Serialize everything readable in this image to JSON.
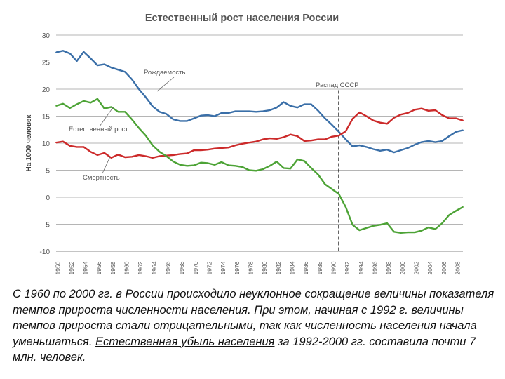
{
  "chart_data": {
    "type": "line",
    "title": "Естественный рост населения России",
    "ylabel": "На 1000 человек",
    "xlabel": "",
    "ylim": [
      -10,
      30
    ],
    "yticks": [
      30,
      25,
      20,
      15,
      10,
      5,
      0,
      -5,
      -10
    ],
    "xlim": [
      1950,
      2009
    ],
    "xticks": [
      "1950",
      "1952",
      "1954",
      "1956",
      "1958",
      "1960",
      "1962",
      "1964",
      "1966",
      "1968",
      "1970",
      "1972",
      "1974",
      "1976",
      "1978",
      "1980",
      "1982",
      "1984",
      "1986",
      "1988",
      "1990",
      "1992",
      "1994",
      "1996",
      "1998",
      "2000",
      "2002",
      "2004",
      "2006",
      "2008"
    ],
    "grid": true,
    "colors": {
      "births": "#3a6fa8",
      "deaths": "#cc2a2a",
      "natural": "#4da336",
      "event": "#111111"
    },
    "event": {
      "x": 1991,
      "label": "Распад СССР"
    },
    "series": [
      {
        "name": "Рождаемость",
        "key": "births",
        "x": [
          1950,
          1951,
          1952,
          1953,
          1954,
          1955,
          1956,
          1957,
          1958,
          1959,
          1960,
          1961,
          1962,
          1963,
          1964,
          1965,
          1966,
          1967,
          1968,
          1969,
          1970,
          1971,
          1972,
          1973,
          1974,
          1975,
          1976,
          1977,
          1978,
          1979,
          1980,
          1981,
          1982,
          1983,
          1984,
          1985,
          1986,
          1987,
          1988,
          1989,
          1990,
          1991,
          1992,
          1993,
          1994,
          1995,
          1996,
          1997,
          1998,
          1999,
          2000,
          2001,
          2002,
          2003,
          2004,
          2005,
          2006,
          2007,
          2008,
          2009
        ],
        "values": [
          26.8,
          27.1,
          26.6,
          25.2,
          26.9,
          25.7,
          24.4,
          24.6,
          24.0,
          23.6,
          23.2,
          21.8,
          20.0,
          18.5,
          16.8,
          15.8,
          15.4,
          14.4,
          14.1,
          14.1,
          14.6,
          15.1,
          15.2,
          15.0,
          15.6,
          15.6,
          15.9,
          15.9,
          15.9,
          15.8,
          15.9,
          16.1,
          16.6,
          17.6,
          16.9,
          16.6,
          17.2,
          17.2,
          16.0,
          14.6,
          13.4,
          12.1,
          10.7,
          9.4,
          9.6,
          9.3,
          8.9,
          8.6,
          8.8,
          8.3,
          8.7,
          9.1,
          9.7,
          10.2,
          10.4,
          10.2,
          10.4,
          11.3,
          12.1,
          12.4
        ]
      },
      {
        "name": "Смертность",
        "key": "deaths",
        "x": [
          1950,
          1951,
          1952,
          1953,
          1954,
          1955,
          1956,
          1957,
          1958,
          1959,
          1960,
          1961,
          1962,
          1963,
          1964,
          1965,
          1966,
          1967,
          1968,
          1969,
          1970,
          1971,
          1972,
          1973,
          1974,
          1975,
          1976,
          1977,
          1978,
          1979,
          1980,
          1981,
          1982,
          1983,
          1984,
          1985,
          1986,
          1987,
          1988,
          1989,
          1990,
          1991,
          1992,
          1993,
          1994,
          1995,
          1996,
          1997,
          1998,
          1999,
          2000,
          2001,
          2002,
          2003,
          2004,
          2005,
          2006,
          2007,
          2008,
          2009
        ],
        "values": [
          10.1,
          10.3,
          9.5,
          9.3,
          9.3,
          8.4,
          7.8,
          8.2,
          7.3,
          7.9,
          7.4,
          7.5,
          7.8,
          7.6,
          7.3,
          7.6,
          7.7,
          7.8,
          8.0,
          8.1,
          8.7,
          8.7,
          8.8,
          9.0,
          9.1,
          9.2,
          9.6,
          9.9,
          10.1,
          10.3,
          10.7,
          10.9,
          10.8,
          11.1,
          11.6,
          11.3,
          10.4,
          10.5,
          10.7,
          10.7,
          11.2,
          11.4,
          12.2,
          14.5,
          15.7,
          15.0,
          14.2,
          13.8,
          13.6,
          14.7,
          15.3,
          15.6,
          16.2,
          16.4,
          16.0,
          16.1,
          15.2,
          14.6,
          14.6,
          14.2
        ]
      },
      {
        "name": "Естественный рост",
        "key": "natural",
        "x": [
          1950,
          1951,
          1952,
          1953,
          1954,
          1955,
          1956,
          1957,
          1958,
          1959,
          1960,
          1961,
          1962,
          1963,
          1964,
          1965,
          1966,
          1967,
          1968,
          1969,
          1970,
          1971,
          1972,
          1973,
          1974,
          1975,
          1976,
          1977,
          1978,
          1979,
          1980,
          1981,
          1982,
          1983,
          1984,
          1985,
          1986,
          1987,
          1988,
          1989,
          1990,
          1991,
          1992,
          1993,
          1994,
          1995,
          1996,
          1997,
          1998,
          1999,
          2000,
          2001,
          2002,
          2003,
          2004,
          2005,
          2006,
          2007,
          2008,
          2009
        ],
        "values": [
          16.9,
          17.3,
          16.5,
          17.2,
          17.8,
          17.5,
          18.2,
          16.4,
          16.7,
          15.8,
          15.8,
          14.4,
          12.8,
          11.4,
          9.6,
          8.4,
          7.6,
          6.6,
          6.0,
          5.8,
          5.9,
          6.4,
          6.3,
          6.0,
          6.5,
          5.9,
          5.8,
          5.6,
          5.0,
          4.9,
          5.2,
          5.8,
          6.6,
          5.4,
          5.3,
          7.0,
          6.7,
          5.4,
          4.2,
          2.4,
          1.5,
          0.6,
          -1.8,
          -5.1,
          -6.1,
          -5.7,
          -5.3,
          -5.1,
          -4.8,
          -6.4,
          -6.6,
          -6.5,
          -6.5,
          -6.2,
          -5.6,
          -5.9,
          -4.8,
          -3.3,
          -2.5,
          -1.8
        ]
      }
    ],
    "annotations": [
      {
        "text": "Рождаемость",
        "key": "births"
      },
      {
        "text": "Естественный рост",
        "key": "natural"
      },
      {
        "text": "Смертность",
        "key": "deaths"
      },
      {
        "text": "Распад СССР",
        "key": "event"
      }
    ]
  },
  "caption": {
    "part1": "С 1960 по 2000 гг. в России происходило неуклонное сокращение величины показателя темпов прироста численности населения. При этом, начиная с 1992 г. величины темпов прироста стали отрицательными, так как численность населения начала уменьшаться. ",
    "underlined": "Естественная убыль населения",
    "part2": " за 1992-2000 гг. составила почти 7 млн. человек."
  }
}
